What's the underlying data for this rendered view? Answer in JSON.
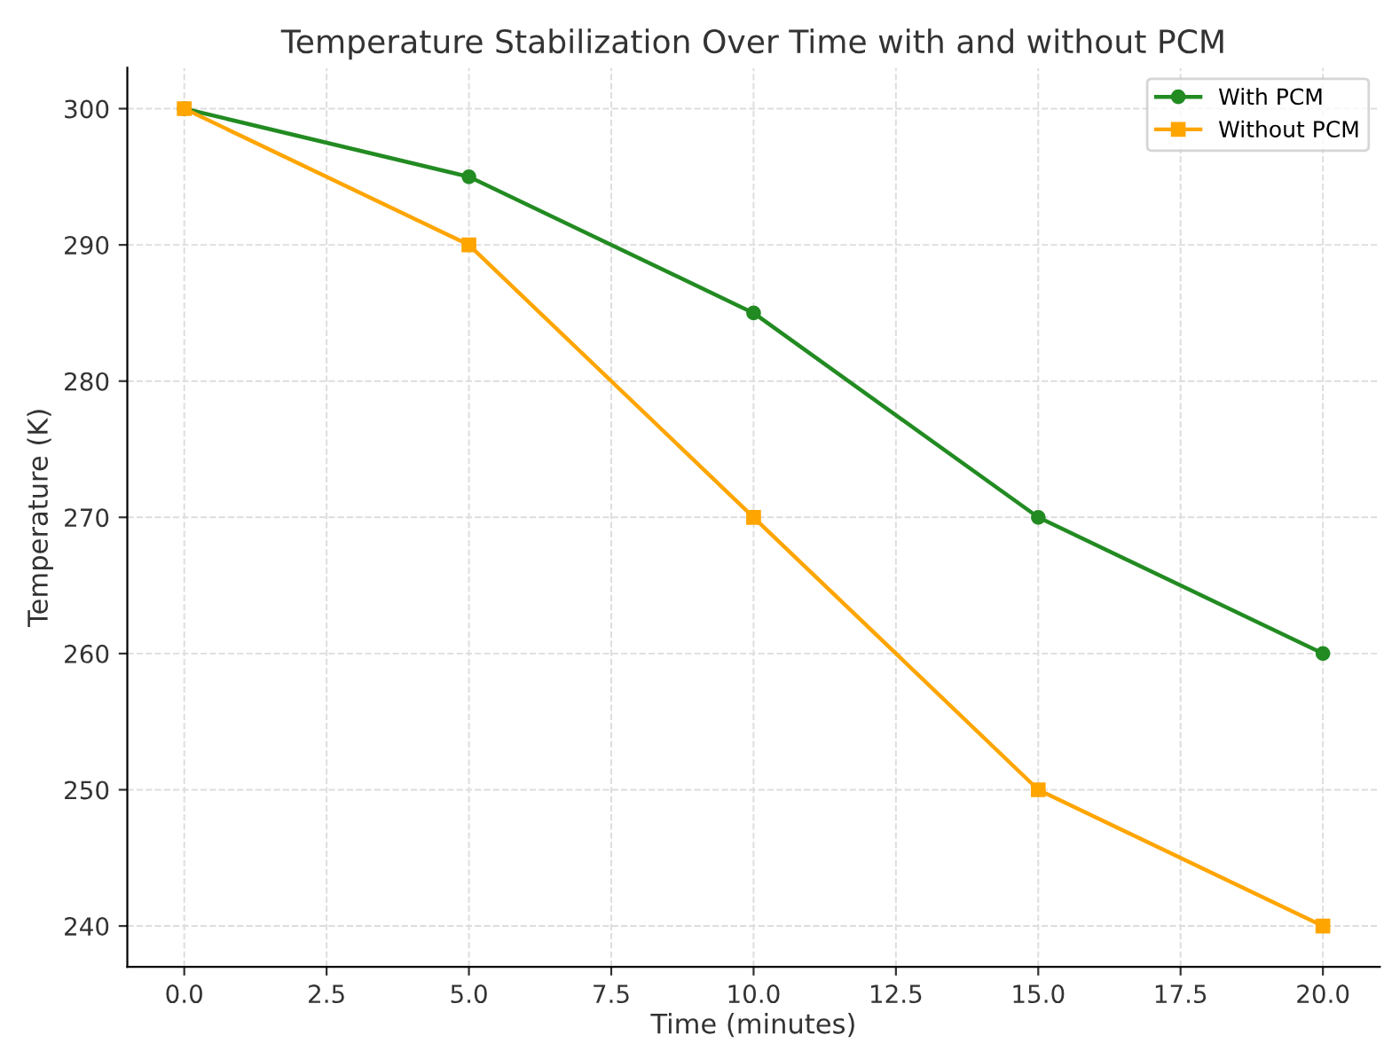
{
  "chart_data": {
    "type": "line",
    "title": "Temperature Stabilization Over Time with and without PCM",
    "xlabel": "Time (minutes)",
    "ylabel": "Temperature (K)",
    "x": [
      0,
      5,
      10,
      15,
      20
    ],
    "series": [
      {
        "name": "With PCM",
        "color": "#228b22",
        "marker": "circle",
        "values": [
          300,
          295,
          285,
          270,
          260
        ]
      },
      {
        "name": "Without PCM",
        "color": "#ffa500",
        "marker": "square",
        "values": [
          300,
          290,
          270,
          250,
          240
        ]
      }
    ],
    "xlim": [
      -1,
      21
    ],
    "xticks": [
      {
        "value": 0,
        "label": "0.0"
      },
      {
        "value": 2.5,
        "label": "2.5"
      },
      {
        "value": 5,
        "label": "5.0"
      },
      {
        "value": 7.5,
        "label": "7.5"
      },
      {
        "value": 10,
        "label": "10.0"
      },
      {
        "value": 12.5,
        "label": "12.5"
      },
      {
        "value": 15,
        "label": "15.0"
      },
      {
        "value": 17.5,
        "label": "17.5"
      },
      {
        "value": 20,
        "label": "20.0"
      }
    ],
    "ylim": [
      237,
      303
    ],
    "yticks": [
      240,
      250,
      260,
      270,
      280,
      290,
      300
    ],
    "grid": true,
    "legend": "top right",
    "line_style": "solid"
  }
}
